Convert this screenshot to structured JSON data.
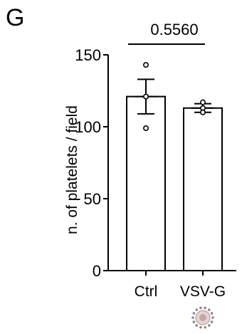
{
  "panel_label": "G",
  "chart_data": {
    "type": "bar",
    "categories": [
      "Ctrl",
      "VSV-G"
    ],
    "values": [
      121,
      113
    ],
    "error": [
      12,
      3
    ],
    "points": [
      [
        143,
        121,
        99
      ],
      [
        117,
        113,
        110
      ]
    ],
    "ylabel": "n. of platelets / field",
    "ylim": [
      0,
      150
    ],
    "yticks": [
      0,
      50,
      100,
      150
    ],
    "grid": false,
    "annotation": {
      "text": "0.5560",
      "between": [
        "Ctrl",
        "VSV-G"
      ]
    },
    "bar_fill": "#ffffff",
    "stroke": "#000000",
    "icon": {
      "category": "VSV-G",
      "name": "virus-particle-icon",
      "color": "#c9a6a6"
    }
  }
}
